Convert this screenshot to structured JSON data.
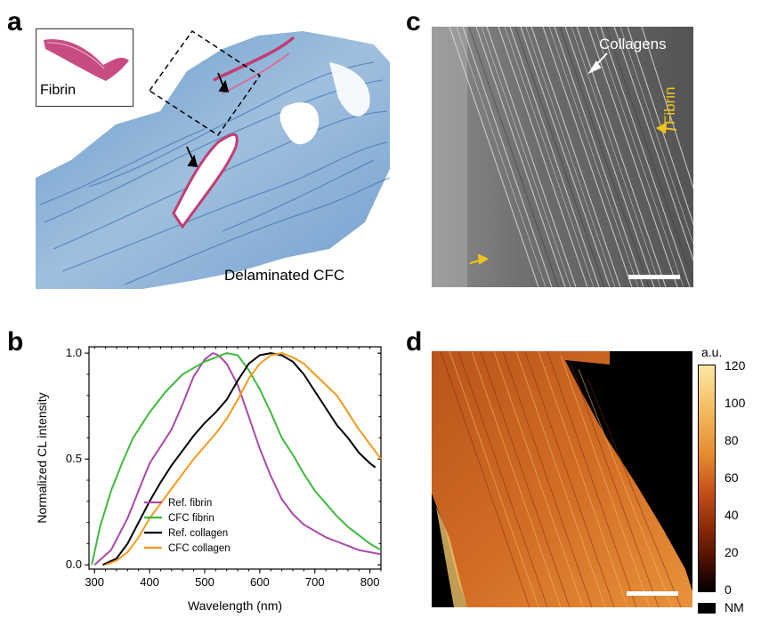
{
  "panels": {
    "a": {
      "letter": "a",
      "inset_label": "Fibrin",
      "caption": "Delaminated CFC",
      "colors": {
        "stain_blue": "#6f9cc9",
        "stain_pink": "#c23c74"
      }
    },
    "b": {
      "letter": "b"
    },
    "c": {
      "letter": "c",
      "label_collagens": "Collagens",
      "label_fibrin": "Fibrin",
      "colors": {
        "arrow_yellow": "#f0c419"
      }
    },
    "d": {
      "letter": "d",
      "colorbar": {
        "unit": "a.u.",
        "ticks": [
          "120",
          "100",
          "80",
          "60",
          "40",
          "20",
          "0"
        ],
        "nm_label": "NM"
      }
    }
  },
  "chart_data": {
    "type": "line",
    "xlabel": "Wavelength (nm)",
    "ylabel": "Normalized CL intensity",
    "xlim": [
      290,
      820
    ],
    "ylim": [
      -0.02,
      1.03
    ],
    "xticks": [
      300,
      400,
      500,
      600,
      700,
      800
    ],
    "yticks": [
      0.0,
      0.5,
      1.0
    ],
    "ytick_labels": [
      "0.0",
      "0.5",
      "1.0"
    ],
    "legend_position": "lower-center",
    "series": [
      {
        "name": "Ref. fibrin",
        "color": "#a94aa8",
        "x": [
          300,
          330,
          360,
          380,
          400,
          420,
          440,
          460,
          480,
          500,
          515,
          525,
          540,
          560,
          580,
          600,
          620,
          640,
          660,
          680,
          700,
          720,
          740,
          760,
          780,
          800,
          820
        ],
        "y": [
          0.0,
          0.07,
          0.22,
          0.35,
          0.48,
          0.56,
          0.64,
          0.76,
          0.89,
          0.97,
          1.0,
          0.99,
          0.95,
          0.85,
          0.7,
          0.55,
          0.42,
          0.31,
          0.24,
          0.19,
          0.16,
          0.13,
          0.11,
          0.09,
          0.07,
          0.06,
          0.05
        ]
      },
      {
        "name": "CFC fibrin",
        "color": "#3dbb3d",
        "x": [
          295,
          310,
          330,
          350,
          370,
          400,
          430,
          460,
          480,
          500,
          520,
          540,
          560,
          580,
          600,
          620,
          640,
          660,
          680,
          700,
          720,
          740,
          760,
          780,
          800,
          820
        ],
        "y": [
          0.0,
          0.18,
          0.35,
          0.48,
          0.6,
          0.72,
          0.82,
          0.9,
          0.93,
          0.96,
          0.98,
          1.0,
          0.99,
          0.92,
          0.83,
          0.72,
          0.6,
          0.52,
          0.43,
          0.35,
          0.29,
          0.23,
          0.18,
          0.14,
          0.1,
          0.07
        ]
      },
      {
        "name": "Ref. collagen",
        "color": "#000000",
        "x": [
          315,
          340,
          360,
          380,
          400,
          420,
          440,
          460,
          480,
          500,
          520,
          540,
          560,
          580,
          600,
          620,
          640,
          660,
          680,
          700,
          720,
          740,
          760,
          780,
          800,
          810
        ],
        "y": [
          0.0,
          0.03,
          0.1,
          0.2,
          0.3,
          0.39,
          0.47,
          0.54,
          0.61,
          0.67,
          0.72,
          0.78,
          0.87,
          0.95,
          0.99,
          1.0,
          0.99,
          0.96,
          0.9,
          0.82,
          0.74,
          0.66,
          0.6,
          0.53,
          0.48,
          0.46
        ]
      },
      {
        "name": "CFC collagen",
        "color": "#f39a1c",
        "x": [
          320,
          340,
          360,
          380,
          400,
          420,
          440,
          460,
          480,
          500,
          520,
          540,
          560,
          580,
          600,
          620,
          640,
          660,
          680,
          700,
          720,
          740,
          760,
          780,
          800,
          820
        ],
        "y": [
          0.0,
          0.02,
          0.06,
          0.13,
          0.22,
          0.29,
          0.36,
          0.43,
          0.5,
          0.56,
          0.62,
          0.69,
          0.78,
          0.88,
          0.95,
          0.99,
          1.0,
          0.98,
          0.95,
          0.9,
          0.85,
          0.8,
          0.72,
          0.64,
          0.57,
          0.5
        ]
      }
    ]
  }
}
